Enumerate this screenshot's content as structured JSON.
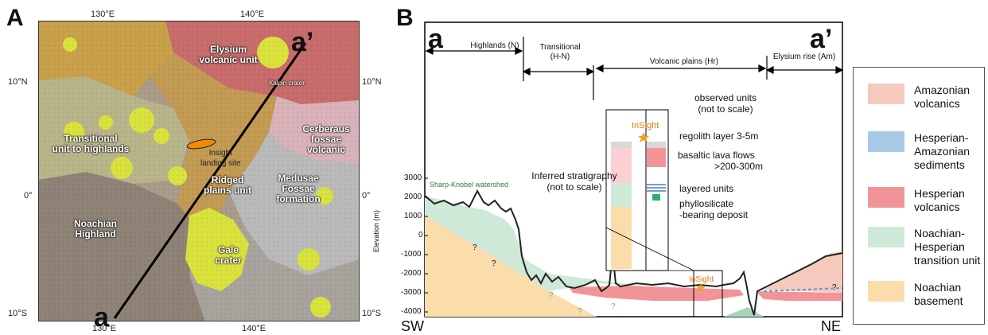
{
  "panel_a": {
    "letter": "A",
    "lon_ticks": [
      "130°E",
      "140°E"
    ],
    "lat_ticks": [
      "10°N",
      "0°",
      "10°S"
    ],
    "units": [
      {
        "name": "Elysium volcanic unit",
        "color": "#c86b6b"
      },
      {
        "name": "Transitional unit to highlands",
        "color": "#b8b48a"
      },
      {
        "name": "Ridged plains unit",
        "color": "#c39a52"
      },
      {
        "name": "Medusae Fossae formation",
        "color": "#b9b9b9"
      },
      {
        "name": "Cerberaus fossae volcanic",
        "color": "#d8b2b8"
      },
      {
        "name": "Noachian Highland",
        "color": "#8e8276"
      },
      {
        "name": "Gale crater",
        "color": "#d9e23c"
      }
    ],
    "labels": {
      "elysium": "Elysium volcanic unit",
      "kalpin": "Kalpin crater",
      "transitional": "Transitional unit to highlands",
      "insight": "Insight landing site",
      "ridged": "Ridged plains unit",
      "medusae": "Medusae Fossae formation",
      "cerberaus": "Cerberaus fossae volcanic",
      "noachian": "Noachian Highland",
      "gale": "Gale crater"
    },
    "profile_start": "a",
    "profile_end": "a’"
  },
  "panel_b": {
    "letter": "B",
    "end_left": "a",
    "end_right": "a’",
    "segments": [
      "Highlands (N)",
      "Transitional (H-N)",
      "Volcanic plains (Hr)",
      "Elysium rise (Am)"
    ],
    "watershed": "Sharp-Knobel watershed",
    "inferred": "Inferred stratigraphy (not to scale)",
    "observed": "observed units (not to scale)",
    "insight_label": "InSight",
    "column_labels": [
      "regolith layer 3-5m",
      "basaltic lava flows >200-300m",
      "layered units",
      "phyllosilicate -bearing deposit"
    ],
    "question_mark": "?",
    "axis_label": "Elevation (m)",
    "y_ticks": [
      "3000",
      "2000",
      "1000",
      "0",
      "-1000",
      "-2000",
      "-3000",
      "-4000"
    ],
    "sw": "SW",
    "ne": "NE"
  },
  "legend": [
    {
      "label": "Amazonian volcanics",
      "color": "#f6c9bd"
    },
    {
      "label": "Hesperian-Amazonian sediments",
      "color": "#a8c9e6"
    },
    {
      "label": "Hesperian volcanics",
      "color": "#f09497"
    },
    {
      "label": "Noachian-Hesperian transition unit",
      "color": "#cfe9d8"
    },
    {
      "label": "Noachian basement",
      "color": "#fbdcab"
    }
  ]
}
